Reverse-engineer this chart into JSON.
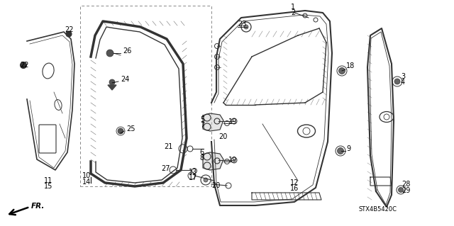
{
  "background_color": "#ffffff",
  "line_color": "#333333",
  "label_fontsize": 7.0,
  "diagram_code": "STX4B5420C",
  "labels": {
    "22a": [
      97,
      42,
      "center"
    ],
    "22b": [
      28,
      92,
      "left"
    ],
    "11": [
      68,
      255,
      "center"
    ],
    "15": [
      68,
      263,
      "center"
    ],
    "26": [
      178,
      80,
      "left"
    ],
    "24": [
      180,
      118,
      "left"
    ],
    "25": [
      185,
      185,
      "left"
    ],
    "10": [
      122,
      248,
      "center"
    ],
    "14": [
      122,
      256,
      "center"
    ],
    "5": [
      292,
      170,
      "right"
    ],
    "7": [
      292,
      178,
      "right"
    ],
    "19a": [
      323,
      177,
      "left"
    ],
    "20a": [
      310,
      195,
      "left"
    ],
    "21": [
      276,
      210,
      "right"
    ],
    "6": [
      292,
      215,
      "right"
    ],
    "8": [
      292,
      223,
      "right"
    ],
    "19b": [
      323,
      228,
      "left"
    ],
    "27": [
      244,
      240,
      "right"
    ],
    "13": [
      273,
      243,
      "center"
    ],
    "17": [
      273,
      251,
      "center"
    ],
    "20b": [
      298,
      262,
      "center"
    ],
    "23": [
      341,
      38,
      "left"
    ],
    "1": [
      413,
      12,
      "center"
    ],
    "2": [
      413,
      20,
      "center"
    ],
    "18": [
      490,
      95,
      "left"
    ],
    "9": [
      488,
      210,
      "left"
    ],
    "12": [
      415,
      258,
      "center"
    ],
    "16": [
      415,
      266,
      "center"
    ],
    "3": [
      568,
      110,
      "left"
    ],
    "4": [
      568,
      118,
      "left"
    ],
    "28": [
      574,
      262,
      "center"
    ],
    "29": [
      574,
      270,
      "center"
    ]
  }
}
